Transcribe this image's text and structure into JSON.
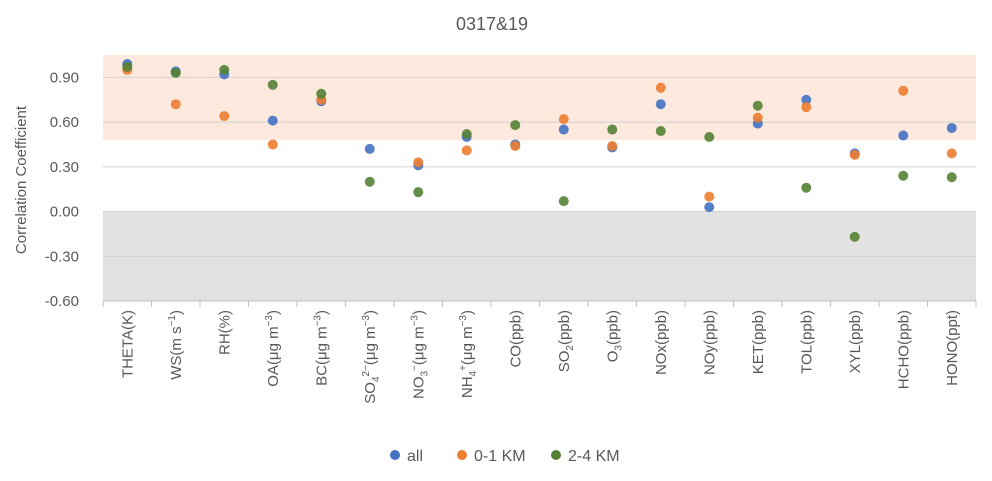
{
  "chart_data": {
    "type": "scatter",
    "title": "0317&19",
    "ylabel": "Correlation Coefficient",
    "xlabel": "",
    "ylim": [
      -0.6,
      1.05
    ],
    "yticks": [
      "0.90",
      "0.60",
      "0.30",
      "0.00",
      "-0.30",
      "-0.60"
    ],
    "ytick_values": [
      0.9,
      0.6,
      0.3,
      0.0,
      -0.3,
      -0.6
    ],
    "grid": true,
    "legend_position": "bottom",
    "shaded_bands": [
      {
        "from": 0.48,
        "to": 1.05,
        "color": "#fde9dd"
      },
      {
        "from": -0.6,
        "to": 0.0,
        "color": "#e2e2e2"
      }
    ],
    "categories": [
      {
        "base": "THETA(K)"
      },
      {
        "base": "WS(m s",
        "sup": "−1",
        "tail": ")"
      },
      {
        "base": "RH(%)"
      },
      {
        "base": "OA(μg m",
        "sup": "−3",
        "tail": ")"
      },
      {
        "base": "BC(μg m",
        "sup": "−3",
        "tail": ")"
      },
      {
        "base": "SO",
        "sub": "4",
        "sup": "2−",
        "tail": "(μg m",
        "sup2": "−3",
        "tail2": ")"
      },
      {
        "base": "NO",
        "sub": "3",
        "sup": "−",
        "tail": "(μg m",
        "sup2": "−3",
        "tail2": ")"
      },
      {
        "base": "NH",
        "sub": "4",
        "sup": "+",
        "tail": "(μg m",
        "sup2": "−3",
        "tail2": ")"
      },
      {
        "base": "CO(ppb)"
      },
      {
        "base": "SO",
        "sub": "2",
        "tail": "(ppb)"
      },
      {
        "base": "O",
        "sub": "3",
        "tail": "(ppb)"
      },
      {
        "base": "NOx(ppb)"
      },
      {
        "base": "NOy(ppb)"
      },
      {
        "base": "KET(ppb)"
      },
      {
        "base": "TOL(ppb)"
      },
      {
        "base": "XYL(ppb)"
      },
      {
        "base": "HCHO(ppb)"
      },
      {
        "base": "HONO(ppt)"
      }
    ],
    "series": [
      {
        "name": "all",
        "color": "#4472c4",
        "values": [
          0.99,
          0.94,
          0.92,
          0.61,
          0.74,
          0.42,
          0.31,
          0.5,
          0.45,
          0.55,
          0.43,
          0.72,
          0.03,
          0.59,
          0.75,
          0.39,
          0.51,
          0.56
        ]
      },
      {
        "name": "0-1 KM",
        "color": "#ed7d31",
        "values": [
          0.95,
          0.72,
          0.64,
          0.45,
          0.75,
          null,
          0.33,
          0.41,
          0.44,
          0.62,
          0.44,
          0.83,
          0.1,
          0.63,
          0.7,
          0.38,
          0.81,
          0.39
        ]
      },
      {
        "name": "2-4 KM",
        "color": "#548235",
        "values": [
          0.97,
          0.93,
          0.95,
          0.85,
          0.79,
          0.2,
          0.13,
          0.52,
          0.58,
          0.07,
          0.55,
          0.54,
          0.5,
          0.71,
          0.16,
          -0.17,
          0.24,
          0.23
        ]
      }
    ]
  }
}
